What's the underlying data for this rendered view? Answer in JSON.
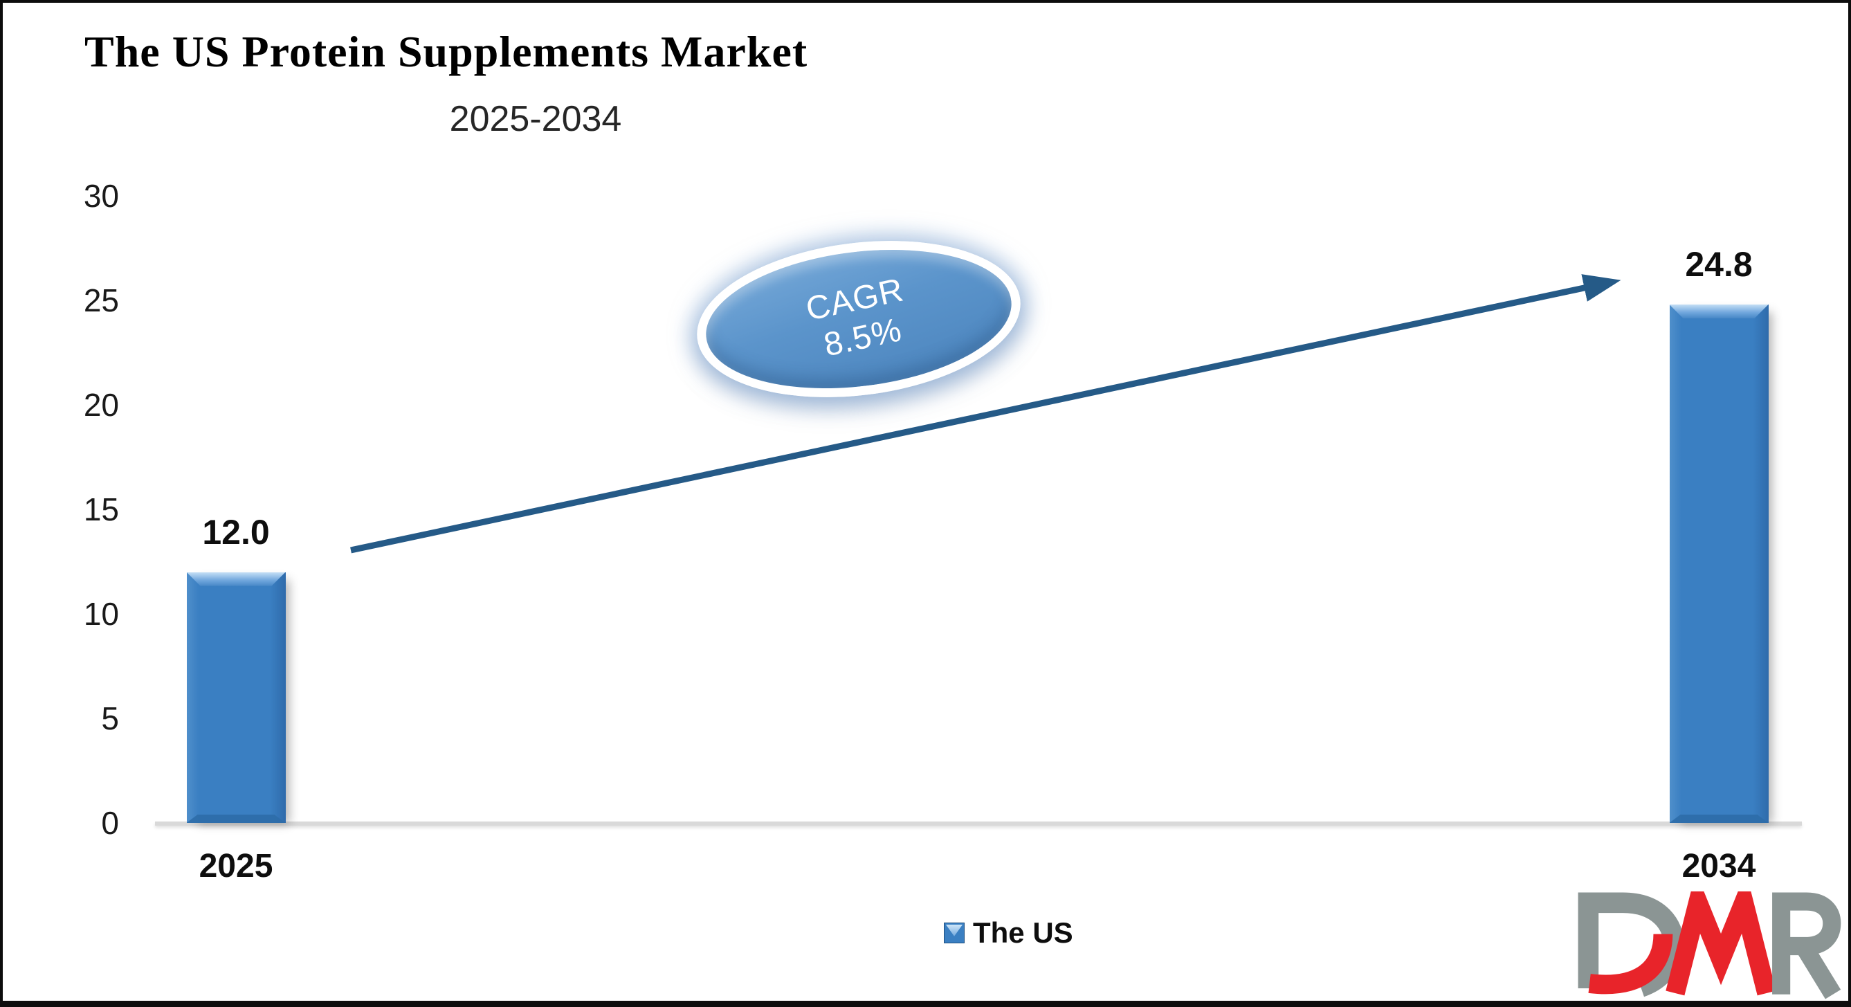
{
  "header": {
    "title": "The US Protein Supplements Market",
    "subtitle": "2025-2034"
  },
  "chart_data": {
    "type": "bar",
    "title": "The US Protein Supplements Market",
    "subtitle": "2025-2034",
    "categories": [
      "2025",
      "2034"
    ],
    "series": [
      {
        "name": "The US",
        "values": [
          12.0,
          24.8
        ]
      }
    ],
    "data_labels": [
      "12.0",
      "24.8"
    ],
    "ylim": [
      0,
      30
    ],
    "yticks": [
      0,
      5,
      10,
      15,
      20,
      25,
      30
    ],
    "grid": false,
    "legend_position": "bottom",
    "annotation": {
      "line1": "CAGR",
      "line2": "8.5%"
    },
    "trend_arrow": {
      "from": "2025 bar",
      "to": "2034 bar",
      "color": "#255A87"
    },
    "colors": {
      "bar": "#3A7FC2",
      "bar_highlight": "#9CC7EA",
      "bar_dark": "#2E6DA8",
      "axis_line": "#D9D9D9",
      "ellipse_fill": "#5B94CB",
      "ellipse_ring": "#FFFFFF",
      "label_text": "#0E0E0E"
    }
  },
  "legend": {
    "label": "The US",
    "marker_color": "#3A7FC2"
  },
  "cagr_badge": {
    "line1": "CAGR",
    "line2": "8.5%"
  },
  "logo": {
    "text": "DMR",
    "gray": "#8B9594",
    "red": "#E8242A"
  }
}
